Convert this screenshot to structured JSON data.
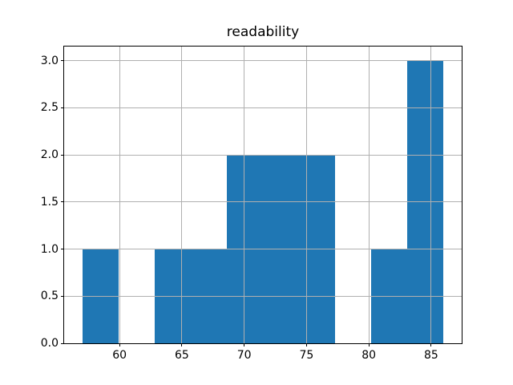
{
  "chart_data": {
    "type": "bar",
    "subtype": "histogram",
    "title": "readability",
    "xlabel": "",
    "ylabel": "",
    "bin_edges": [
      57.0,
      59.9,
      62.8,
      65.7,
      68.6,
      71.5,
      74.4,
      77.3,
      80.2,
      83.1,
      86.0
    ],
    "counts": [
      1,
      0,
      1,
      1,
      2,
      2,
      2,
      0,
      1,
      3
    ],
    "xlim": [
      55.55,
      87.45
    ],
    "ylim": [
      0,
      3.15
    ],
    "xticks": {
      "values": [
        60,
        65,
        70,
        75,
        80,
        85
      ],
      "labels": [
        "60",
        "65",
        "70",
        "75",
        "80",
        "85"
      ]
    },
    "yticks": {
      "values": [
        0.0,
        0.5,
        1.0,
        1.5,
        2.0,
        2.5,
        3.0
      ],
      "labels": [
        "0.0",
        "0.5",
        "1.0",
        "1.5",
        "2.0",
        "2.5",
        "3.0"
      ]
    },
    "grid": true,
    "legend": null,
    "colors": {
      "bar": "#1f77b4",
      "grid": "#b0b0b0",
      "spine": "#000000",
      "text": "#000000",
      "background": "#ffffff"
    }
  }
}
